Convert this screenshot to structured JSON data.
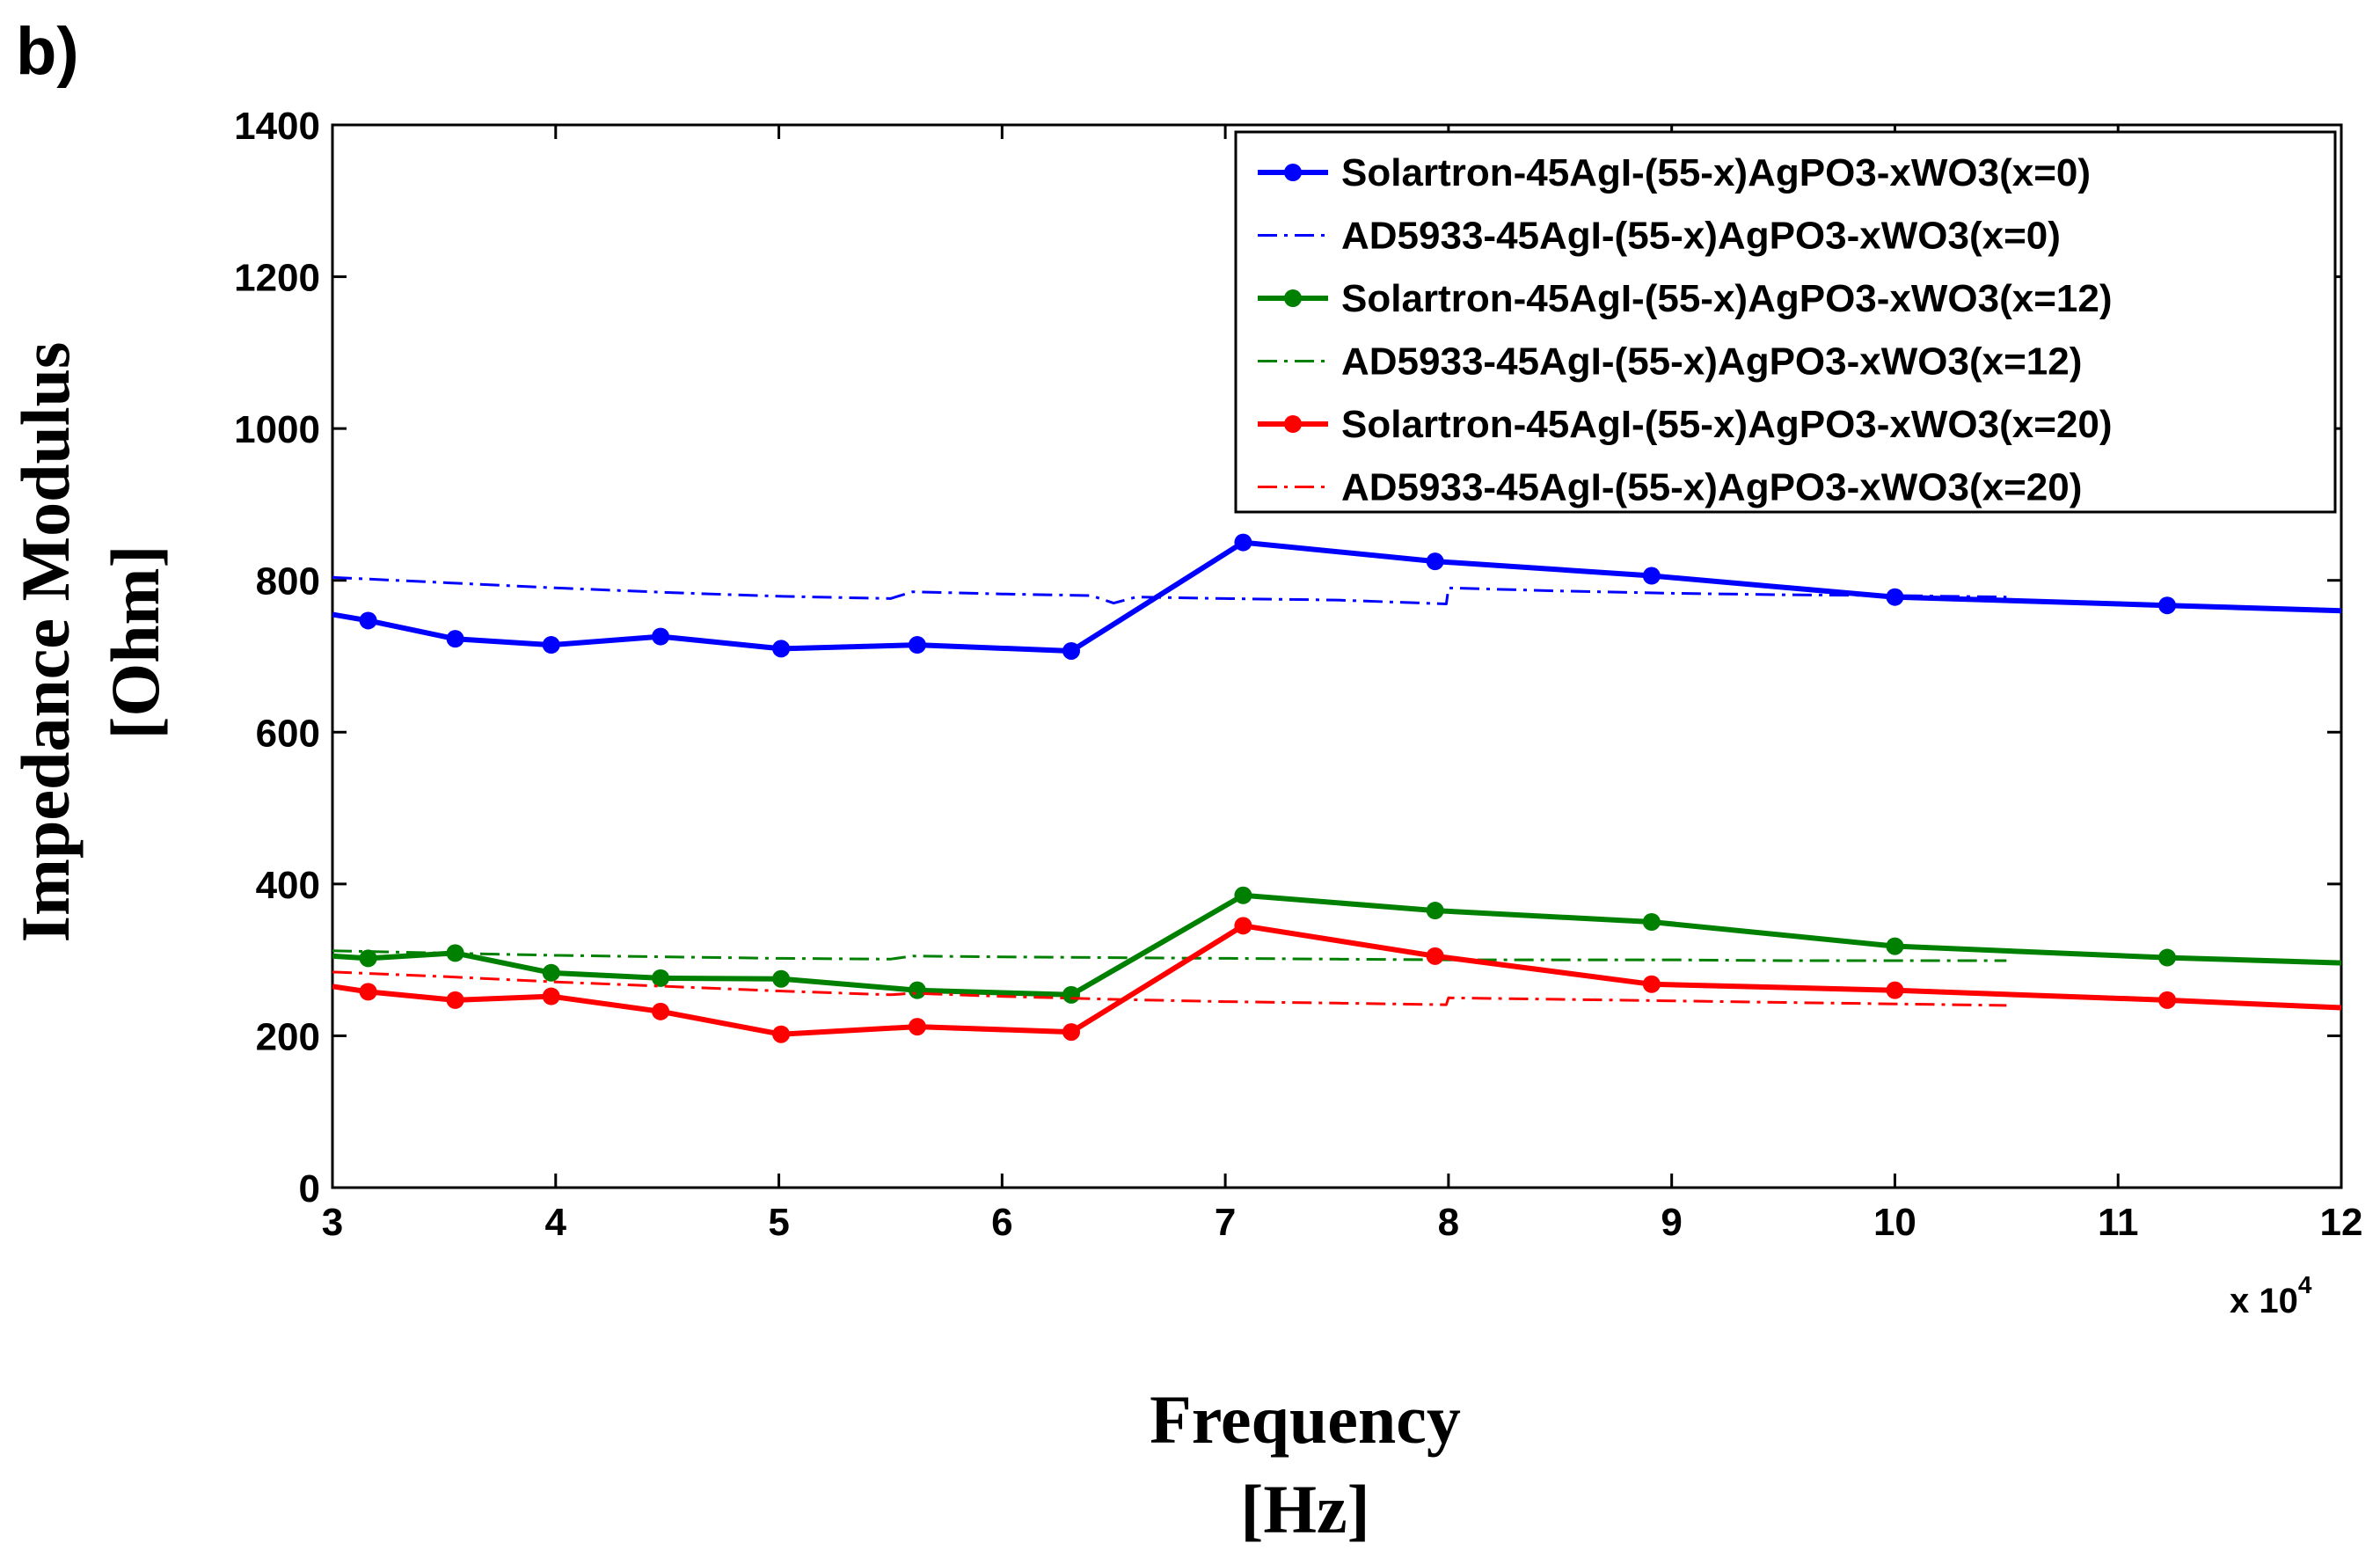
{
  "panel_label": "b)",
  "chart_data": {
    "type": "line",
    "title": "",
    "xlabel": "Frequency",
    "xlabel_unit": "[Hz]",
    "ylabel": "Impedance Modulus",
    "ylabel_unit": "[Ohm]",
    "x_multiplier_text": "x 10",
    "x_multiplier_exp": "4",
    "xlim": [
      3,
      12
    ],
    "ylim": [
      0,
      1400
    ],
    "x_ticks": [
      3,
      4,
      5,
      6,
      7,
      8,
      9,
      10,
      11,
      12
    ],
    "x_tick_labels": [
      "3",
      "4",
      "5",
      "6",
      "7",
      "8",
      "9",
      "10",
      "11",
      "12"
    ],
    "y_ticks": [
      0,
      200,
      400,
      600,
      800,
      1000,
      1200,
      1400
    ],
    "y_tick_labels": [
      "0",
      "200",
      "400",
      "600",
      "800",
      "1000",
      "1200",
      "1400"
    ],
    "legend_position": "top-right",
    "series": [
      {
        "name": "Solartron-45AgI-(55-x)AgPO3-xWO3(x=0)",
        "color": "#0000ff",
        "style": "solid-marker",
        "x": [
          3.0,
          3.16,
          3.55,
          3.98,
          4.47,
          5.01,
          5.62,
          6.31,
          7.08,
          7.94,
          8.91,
          10.0,
          11.22,
          12.0
        ],
        "y": [
          755,
          747,
          723,
          715,
          726,
          710,
          715,
          707,
          850,
          825,
          806,
          778,
          767,
          760
        ]
      },
      {
        "name": "AD5933-45AgI-(55-x)AgPO3-xWO3(x=0)",
        "color": "#0000ff",
        "style": "dashdot",
        "x": [
          3.0,
          3.5,
          4.0,
          4.5,
          5.0,
          5.5,
          5.6,
          6.0,
          6.4,
          6.5,
          6.6,
          7.0,
          7.5,
          7.99,
          8.0,
          8.5,
          9.0,
          9.5,
          10.0,
          10.5
        ],
        "y": [
          804,
          797,
          790,
          784,
          779,
          776,
          785,
          782,
          780,
          770,
          778,
          776,
          774,
          769,
          790,
          786,
          783,
          781,
          780,
          778
        ]
      },
      {
        "name": "Solartron-45AgI-(55-x)AgPO3-xWO3(x=12)",
        "color": "#008000",
        "style": "solid-marker",
        "x": [
          3.0,
          3.16,
          3.55,
          3.98,
          4.47,
          5.01,
          5.62,
          6.31,
          7.08,
          7.94,
          8.91,
          10.0,
          11.22,
          12.0
        ],
        "y": [
          305,
          302,
          309,
          283,
          276,
          275,
          260,
          254,
          385,
          365,
          350,
          318,
          303,
          296
        ]
      },
      {
        "name": "AD5933-45AgI-(55-x)AgPO3-xWO3(x=12)",
        "color": "#008000",
        "style": "dashdot",
        "x": [
          3.0,
          3.5,
          4.0,
          4.5,
          5.0,
          5.5,
          5.6,
          6.0,
          6.5,
          7.0,
          7.5,
          8.0,
          8.5,
          9.0,
          9.5,
          10.0,
          10.5
        ],
        "y": [
          312,
          309,
          306,
          304,
          302,
          301,
          305,
          304,
          303,
          302,
          301,
          300,
          300,
          300,
          299,
          299,
          299
        ]
      },
      {
        "name": "Solartron-45AgI-(55-x)AgPO3-xWO3(x=20)",
        "color": "#ff0000",
        "style": "solid-marker",
        "x": [
          3.0,
          3.16,
          3.55,
          3.98,
          4.47,
          5.01,
          5.62,
          6.31,
          7.08,
          7.94,
          8.91,
          10.0,
          11.22,
          12.0
        ],
        "y": [
          265,
          258,
          247,
          252,
          232,
          202,
          212,
          205,
          345,
          305,
          268,
          260,
          247,
          237
        ]
      },
      {
        "name": "AD5933-45AgI-(55-x)AgPO3-xWO3(x=20)",
        "color": "#ff0000",
        "style": "dashdot",
        "x": [
          3.0,
          3.5,
          4.0,
          4.5,
          5.0,
          5.5,
          5.6,
          6.0,
          6.5,
          7.0,
          7.5,
          7.99,
          8.0,
          8.5,
          9.0,
          9.5,
          10.0,
          10.5
        ],
        "y": [
          284,
          278,
          271,
          265,
          259,
          254,
          256,
          252,
          248,
          245,
          243,
          241,
          250,
          248,
          246,
          244,
          242,
          240
        ]
      }
    ]
  }
}
